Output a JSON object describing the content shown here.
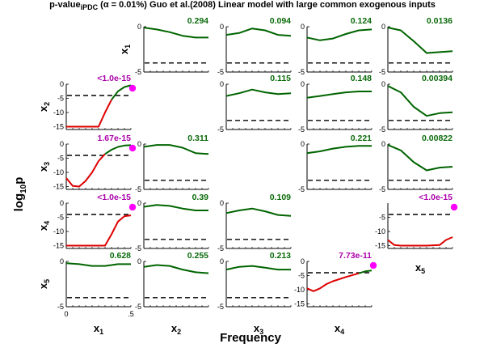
{
  "chart_data": {
    "type": "line",
    "title_prefix": "p-value",
    "title_subscript": "iPDC",
    "title_suffix": "(α = 0.01%) Guo et al.(2008) Linear model with large common exogenous inputs",
    "xlabel": "Frequency",
    "ylabel_main": "log",
    "ylabel_sub": "10",
    "ylabel_end": "p",
    "x_range": [
      0,
      0.5
    ],
    "x_ticks": [
      "0",
      ".5"
    ],
    "threshold_log10p": -4,
    "variables": [
      "x1",
      "x2",
      "x3",
      "x4",
      "x5"
    ],
    "colors": {
      "not_significant": "#006400",
      "significant": "#dd0000",
      "annotation_significant": "#aa00aa",
      "marker": "#ff00ff",
      "threshold": "#000000"
    },
    "panels": [
      {
        "row": 1,
        "col": 2,
        "ylim": [
          -5,
          0
        ],
        "yticks": [
          "0",
          "-5"
        ],
        "label": "0.294",
        "label_color": "#0b6b0b",
        "x": [
          0,
          0.1,
          0.2,
          0.3,
          0.4,
          0.5
        ],
        "y": [
          -0.1,
          -0.3,
          -0.6,
          -1.0,
          -1.2,
          -1.2
        ]
      },
      {
        "row": 1,
        "col": 3,
        "ylim": [
          -5,
          0
        ],
        "yticks": [
          "0",
          "-5"
        ],
        "label": "0.094",
        "label_color": "#0b6b0b",
        "x": [
          0,
          0.1,
          0.2,
          0.3,
          0.4,
          0.5
        ],
        "y": [
          -0.9,
          -0.7,
          -0.2,
          -0.4,
          -0.9,
          -1.0
        ]
      },
      {
        "row": 1,
        "col": 4,
        "ylim": [
          -5,
          0
        ],
        "yticks": [
          "0",
          "-5"
        ],
        "label": "0.124",
        "label_color": "#0b6b0b",
        "x": [
          0,
          0.1,
          0.2,
          0.3,
          0.4,
          0.5
        ],
        "y": [
          -1.2,
          -1.5,
          -1.3,
          -0.8,
          -0.4,
          -0.3
        ]
      },
      {
        "row": 1,
        "col": 5,
        "ylim": [
          -5,
          0
        ],
        "yticks": [
          "0",
          "-5"
        ],
        "label": "0.0136",
        "label_color": "#0b6b0b",
        "x": [
          0,
          0.1,
          0.2,
          0.3,
          0.4,
          0.5
        ],
        "y": [
          -0.1,
          -0.4,
          -1.6,
          -2.9,
          -2.8,
          -2.7
        ]
      },
      {
        "row": 2,
        "col": 1,
        "ylim": [
          -16,
          0
        ],
        "yticks": [
          "0",
          "-5",
          "-10",
          "-15"
        ],
        "label": "<1.0e-15",
        "label_color": "#aa00aa",
        "marker": true,
        "x": [
          0,
          0.1,
          0.2,
          0.25,
          0.3,
          0.35,
          0.4,
          0.45,
          0.5
        ],
        "y": [
          -15,
          -15,
          -15,
          -15,
          -10,
          -5.5,
          -2.5,
          -1,
          -0.4
        ],
        "sig_threshold_index": 6
      },
      {
        "row": 2,
        "col": 3,
        "ylim": [
          -5,
          0
        ],
        "yticks": [
          "0",
          "-5"
        ],
        "label": "0.115",
        "label_color": "#0b6b0b",
        "x": [
          0,
          0.1,
          0.2,
          0.3,
          0.4,
          0.5
        ],
        "y": [
          -1.3,
          -1.0,
          -0.6,
          -0.9,
          -1.1,
          -1.0
        ]
      },
      {
        "row": 2,
        "col": 4,
        "ylim": [
          -5,
          0
        ],
        "yticks": [
          "0",
          "-5"
        ],
        "label": "0.148",
        "label_color": "#0b6b0b",
        "x": [
          0,
          0.1,
          0.2,
          0.3,
          0.4,
          0.5
        ],
        "y": [
          -1.5,
          -1.3,
          -1.1,
          -0.9,
          -0.8,
          -0.8
        ]
      },
      {
        "row": 2,
        "col": 5,
        "ylim": [
          -5,
          0
        ],
        "yticks": [
          "0",
          "-5"
        ],
        "label": "0.00394",
        "label_color": "#0b6b0b",
        "x": [
          0,
          0.1,
          0.2,
          0.3,
          0.4,
          0.5
        ],
        "y": [
          -0.2,
          -0.9,
          -2.5,
          -3.5,
          -3.2,
          -3.1
        ]
      },
      {
        "row": 3,
        "col": 1,
        "ylim": [
          -16,
          0
        ],
        "yticks": [
          "0",
          "-5",
          "-10",
          "-15"
        ],
        "label": "1.67e-15",
        "label_color": "#aa00aa",
        "marker": true,
        "x": [
          0,
          0.05,
          0.1,
          0.15,
          0.2,
          0.25,
          0.3,
          0.35,
          0.4,
          0.45,
          0.5
        ],
        "y": [
          -12,
          -14.8,
          -15,
          -13,
          -10,
          -6,
          -3.5,
          -2,
          -1,
          -0.5,
          -0.4
        ]
      },
      {
        "row": 3,
        "col": 2,
        "ylim": [
          -5,
          0
        ],
        "yticks": [
          "0",
          "-5"
        ],
        "label": "0.311",
        "label_color": "#0b6b0b",
        "x": [
          0,
          0.1,
          0.2,
          0.3,
          0.4,
          0.5
        ],
        "y": [
          -0.3,
          -0.1,
          -0.1,
          -0.4,
          -1.0,
          -1.1
        ]
      },
      {
        "row": 3,
        "col": 4,
        "ylim": [
          -5,
          0
        ],
        "yticks": [
          "0",
          "-5"
        ],
        "label": "0.221",
        "label_color": "#0b6b0b",
        "x": [
          0,
          0.1,
          0.2,
          0.3,
          0.4,
          0.5
        ],
        "y": [
          -1.0,
          -0.8,
          -0.5,
          -0.3,
          -0.2,
          -0.2
        ]
      },
      {
        "row": 3,
        "col": 5,
        "ylim": [
          -5,
          0
        ],
        "yticks": [
          "0",
          "-5"
        ],
        "label": "0.00822",
        "label_color": "#0b6b0b",
        "x": [
          0,
          0.1,
          0.2,
          0.3,
          0.4,
          0.5
        ],
        "y": [
          -0.1,
          -0.7,
          -2.0,
          -2.9,
          -2.6,
          -2.5
        ]
      },
      {
        "row": 4,
        "col": 1,
        "ylim": [
          -16,
          0
        ],
        "yticks": [
          "0",
          "-5",
          "-10",
          "-15"
        ],
        "label": "<1.0e-15",
        "label_color": "#aa00aa",
        "marker": true,
        "x": [
          0,
          0.1,
          0.2,
          0.25,
          0.3,
          0.35,
          0.4,
          0.45,
          0.5
        ],
        "y": [
          -15,
          -15,
          -15,
          -15,
          -15,
          -11,
          -6.5,
          -4.6,
          -4.3
        ]
      },
      {
        "row": 4,
        "col": 2,
        "ylim": [
          -5,
          0
        ],
        "yticks": [
          "0",
          "-5"
        ],
        "label": "0.39",
        "label_color": "#0b6b0b",
        "x": [
          0,
          0.1,
          0.2,
          0.3,
          0.4,
          0.5
        ],
        "y": [
          -0.4,
          -0.2,
          -0.3,
          -0.6,
          -0.8,
          -0.8
        ]
      },
      {
        "row": 4,
        "col": 3,
        "ylim": [
          -5,
          0
        ],
        "yticks": [
          "0",
          "-5"
        ],
        "label": "0.109",
        "label_color": "#0b6b0b",
        "x": [
          0,
          0.1,
          0.2,
          0.3,
          0.4,
          0.5
        ],
        "y": [
          -1.1,
          -0.8,
          -0.6,
          -0.9,
          -1.3,
          -1.4
        ]
      },
      {
        "row": 4,
        "col": 5,
        "ylim": [
          -16,
          0
        ],
        "yticks": [
          "-5",
          "-10",
          "-15"
        ],
        "label": "<1.0e-15",
        "label_color": "#aa00aa",
        "marker": true,
        "x": [
          0,
          0.05,
          0.1,
          0.2,
          0.3,
          0.4,
          0.45,
          0.5
        ],
        "y": [
          -13,
          -14.8,
          -15,
          -15,
          -15,
          -14.8,
          -13,
          -12
        ],
        "sig_threshold_index": 99
      },
      {
        "row": 5,
        "col": 1,
        "ylim": [
          -5,
          0
        ],
        "yticks": [
          "0",
          "-5"
        ],
        "label": "0.628",
        "label_color": "#0b6b0b",
        "x": [
          0,
          0.1,
          0.2,
          0.3,
          0.4,
          0.5
        ],
        "y": [
          -0.2,
          -0.3,
          -0.5,
          -0.5,
          -0.3,
          -0.3
        ]
      },
      {
        "row": 5,
        "col": 2,
        "ylim": [
          -5,
          0
        ],
        "yticks": [
          "0",
          "-5"
        ],
        "label": "0.255",
        "label_color": "#0b6b0b",
        "x": [
          0,
          0.1,
          0.2,
          0.3,
          0.4,
          0.5
        ],
        "y": [
          -0.6,
          -0.4,
          -0.5,
          -0.9,
          -1.2,
          -1.3
        ]
      },
      {
        "row": 5,
        "col": 3,
        "ylim": [
          -5,
          0
        ],
        "yticks": [
          "0",
          "-5"
        ],
        "label": "0.213",
        "label_color": "#0b6b0b",
        "x": [
          0,
          0.1,
          0.2,
          0.3,
          0.4,
          0.5
        ],
        "y": [
          -0.9,
          -0.6,
          -0.5,
          -0.7,
          -0.9,
          -0.9
        ]
      },
      {
        "row": 5,
        "col": 4,
        "ylim": [
          -16,
          0
        ],
        "yticks": [
          "0",
          "-5",
          "-10",
          "-15"
        ],
        "label": "7.73e-11",
        "label_color": "#aa00aa",
        "marker": true,
        "x": [
          0,
          0.05,
          0.1,
          0.15,
          0.2,
          0.3,
          0.4,
          0.45,
          0.5
        ],
        "y": [
          -9.5,
          -10.5,
          -9.5,
          -8,
          -7,
          -5.5,
          -4.2,
          -3.5,
          -3.2
        ],
        "sig_threshold_index": 7
      }
    ]
  }
}
